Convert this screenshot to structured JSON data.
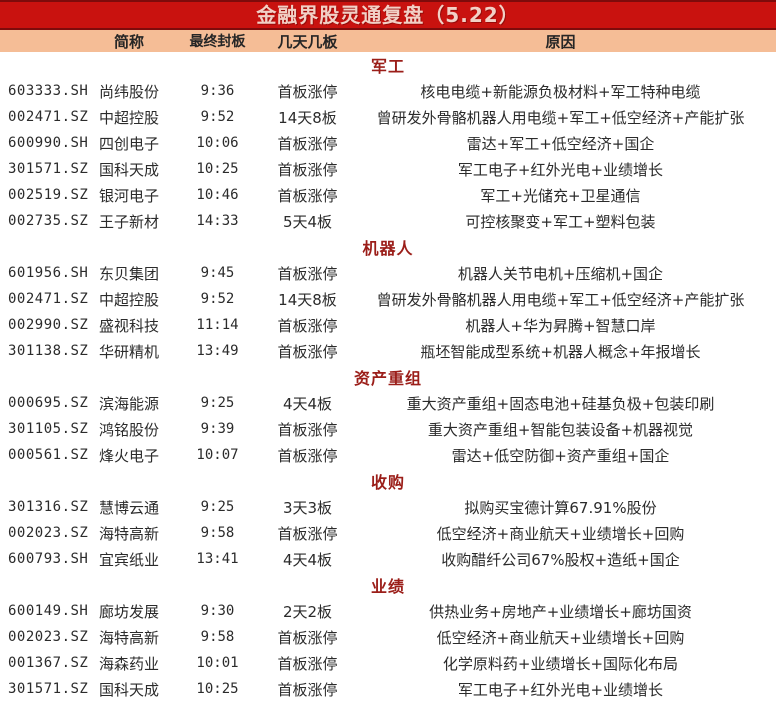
{
  "title": "金融界股灵通复盘（5.22）",
  "columns": {
    "code": "",
    "name": "简称",
    "time": "最终封板",
    "board": "几天几板",
    "reason": "原因"
  },
  "sections": [
    {
      "label": "军工",
      "rows": [
        {
          "code": "603333.SH",
          "name": "尚纬股份",
          "time": "9:36",
          "board": "首板涨停",
          "reason": "核电电缆+新能源负极材料+军工特种电缆"
        },
        {
          "code": "002471.SZ",
          "name": "中超控股",
          "time": "9:52",
          "board": "14天8板",
          "reason": "曾研发外骨骼机器人用电缆+军工+低空经济+产能扩张"
        },
        {
          "code": "600990.SH",
          "name": "四创电子",
          "time": "10:06",
          "board": "首板涨停",
          "reason": "雷达+军工+低空经济+国企"
        },
        {
          "code": "301571.SZ",
          "name": "国科天成",
          "time": "10:25",
          "board": "首板涨停",
          "reason": "军工电子+红外光电+业绩增长"
        },
        {
          "code": "002519.SZ",
          "name": "银河电子",
          "time": "10:46",
          "board": "首板涨停",
          "reason": "军工+光储充+卫星通信"
        },
        {
          "code": "002735.SZ",
          "name": "王子新材",
          "time": "14:33",
          "board": "5天4板",
          "reason": "可控核聚变+军工+塑料包装"
        }
      ]
    },
    {
      "label": "机器人",
      "rows": [
        {
          "code": "601956.SH",
          "name": "东贝集团",
          "time": "9:45",
          "board": "首板涨停",
          "reason": "机器人关节电机+压缩机+国企"
        },
        {
          "code": "002471.SZ",
          "name": "中超控股",
          "time": "9:52",
          "board": "14天8板",
          "reason": "曾研发外骨骼机器人用电缆+军工+低空经济+产能扩张"
        },
        {
          "code": "002990.SZ",
          "name": "盛视科技",
          "time": "11:14",
          "board": "首板涨停",
          "reason": "机器人+华为昇腾+智慧口岸"
        },
        {
          "code": "301138.SZ",
          "name": "华研精机",
          "time": "13:49",
          "board": "首板涨停",
          "reason": "瓶坯智能成型系统+机器人概念+年报增长"
        }
      ]
    },
    {
      "label": "资产重组",
      "rows": [
        {
          "code": "000695.SZ",
          "name": "滨海能源",
          "time": "9:25",
          "board": "4天4板",
          "reason": "重大资产重组+固态电池+硅基负极+包装印刷"
        },
        {
          "code": "301105.SZ",
          "name": "鸿铭股份",
          "time": "9:39",
          "board": "首板涨停",
          "reason": "重大资产重组+智能包装设备+机器视觉"
        },
        {
          "code": "000561.SZ",
          "name": "烽火电子",
          "time": "10:07",
          "board": "首板涨停",
          "reason": "雷达+低空防御+资产重组+国企"
        }
      ]
    },
    {
      "label": "收购",
      "rows": [
        {
          "code": "301316.SZ",
          "name": "慧博云通",
          "time": "9:25",
          "board": "3天3板",
          "reason": "拟购买宝德计算67.91%股份"
        },
        {
          "code": "002023.SZ",
          "name": "海特高新",
          "time": "9:58",
          "board": "首板涨停",
          "reason": "低空经济+商业航天+业绩增长+回购"
        },
        {
          "code": "600793.SH",
          "name": "宜宾纸业",
          "time": "13:41",
          "board": "4天4板",
          "reason": "收购醋纤公司67%股权+造纸+国企"
        }
      ]
    },
    {
      "label": "业绩",
      "rows": [
        {
          "code": "600149.SH",
          "name": "廊坊发展",
          "time": "9:30",
          "board": "2天2板",
          "reason": "供热业务+房地产+业绩增长+廊坊国资"
        },
        {
          "code": "002023.SZ",
          "name": "海特高新",
          "time": "9:58",
          "board": "首板涨停",
          "reason": "低空经济+商业航天+业绩增长+回购"
        },
        {
          "code": "001367.SZ",
          "name": "海森药业",
          "time": "10:01",
          "board": "首板涨停",
          "reason": "化学原料药+业绩增长+国际化布局"
        },
        {
          "code": "301571.SZ",
          "name": "国科天成",
          "time": "10:25",
          "board": "首板涨停",
          "reason": "军工电子+红外光电+业绩增长"
        }
      ]
    }
  ],
  "colors": {
    "title_bg": "#c9120f",
    "title_border": "#7e0b0b",
    "title_text": "#f2d0c6",
    "header_bg": "#f5bd96",
    "section_text": "#9b1e19",
    "body_text": "#2b2b2b"
  }
}
